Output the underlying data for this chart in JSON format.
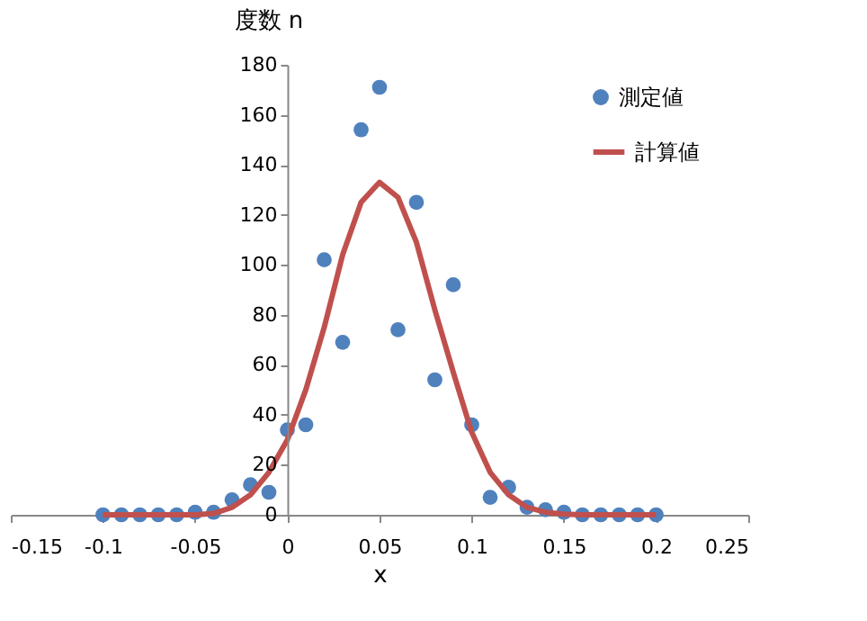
{
  "chart_data": {
    "type": "scatter",
    "xlabel": "x",
    "ylabel": "度数 n",
    "x": [
      -0.1,
      -0.09,
      -0.08,
      -0.07,
      -0.06,
      -0.05,
      -0.04,
      -0.03,
      -0.02,
      -0.01,
      0,
      0.01,
      0.02,
      0.03,
      0.04,
      0.05,
      0.06,
      0.07,
      0.08,
      0.09,
      0.1,
      0.11,
      0.12,
      0.13,
      0.14,
      0.15,
      0.16,
      0.17,
      0.18,
      0.19,
      0.2
    ],
    "series": [
      {
        "name": "測定値",
        "color": "#4f81bd",
        "marker": "circle",
        "values": [
          0,
          0,
          0,
          0,
          0,
          1,
          1,
          6,
          12,
          9,
          34,
          36,
          102,
          69,
          154,
          171,
          74,
          125,
          54,
          92,
          36,
          7,
          11,
          3,
          2,
          1,
          0,
          0,
          0,
          0,
          0
        ]
      },
      {
        "name": "計算値",
        "type": "line",
        "color": "#c0504d",
        "line_style": "solid",
        "values": [
          0,
          0,
          0,
          0,
          0,
          0,
          0.5,
          3,
          8,
          17,
          30,
          50,
          75,
          104,
          125,
          133,
          127,
          109,
          82,
          57,
          33,
          17,
          8,
          3,
          1,
          0.3,
          0,
          0,
          0,
          0,
          0
        ]
      }
    ],
    "xlim": [
      -0.15,
      0.25
    ],
    "xticks": [
      -0.15,
      -0.1,
      -0.05,
      0,
      0.05,
      0.1,
      0.15,
      0.2,
      0.25
    ],
    "ylim": [
      0,
      180
    ],
    "yticks": [
      0,
      20,
      40,
      60,
      80,
      100,
      120,
      140,
      160,
      180
    ],
    "grid": false,
    "legend": "top right"
  }
}
